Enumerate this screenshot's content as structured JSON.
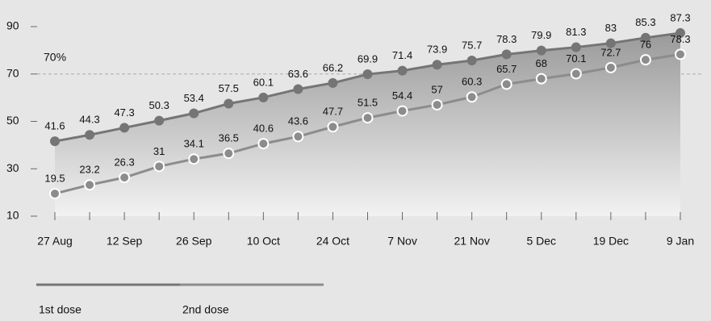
{
  "chart_data": {
    "type": "line",
    "categories": [
      "27 Aug",
      null,
      "12 Sep",
      null,
      "26 Sep",
      null,
      "10 Oct",
      null,
      "24 Oct",
      null,
      "7 Nov",
      null,
      "21 Nov",
      null,
      "5 Dec",
      null,
      "19 Dec",
      null,
      "9 Jan"
    ],
    "series": [
      {
        "name": "1st dose",
        "color": "#757575",
        "values": [
          41.6,
          44.3,
          47.3,
          50.3,
          53.4,
          57.5,
          60.1,
          63.6,
          66.2,
          69.9,
          71.4,
          73.9,
          75.7,
          78.3,
          79.9,
          81.3,
          83,
          85.3,
          87.3
        ]
      },
      {
        "name": "2nd dose",
        "color": "#8c8c8c",
        "values": [
          19.5,
          23.2,
          26.3,
          31,
          34.1,
          36.5,
          40.6,
          43.6,
          47.7,
          51.5,
          54.4,
          57,
          60.3,
          65.7,
          68,
          70.1,
          72.7,
          76,
          78.3
        ]
      }
    ],
    "ylim": [
      10,
      90
    ],
    "yticks": [
      10,
      30,
      50,
      70,
      90
    ],
    "reference_line": {
      "value": 70,
      "label": "70%"
    }
  }
}
